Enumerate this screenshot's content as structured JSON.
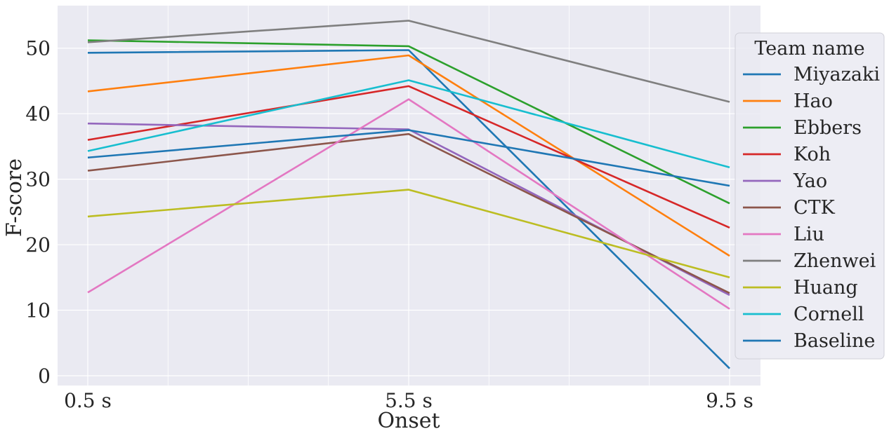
{
  "chart_data": {
    "type": "line",
    "categories": [
      "0.5 s",
      "5.5 s",
      "9.5 s"
    ],
    "xlabel": "Onset",
    "ylabel": "F-score",
    "ylim": [
      -1.5,
      56.5
    ],
    "yticks": [
      0,
      10,
      20,
      30,
      40,
      50
    ],
    "grid": true,
    "legend_title": "Team name",
    "legend_position": "right",
    "series": [
      {
        "name": "Miyazaki",
        "color": "#1f77b4",
        "values": [
          49.3,
          49.7,
          1.1
        ]
      },
      {
        "name": "Hao",
        "color": "#ff7f0e",
        "values": [
          43.4,
          48.9,
          18.3
        ]
      },
      {
        "name": "Ebbers",
        "color": "#2ca02c",
        "values": [
          51.2,
          50.3,
          26.3
        ]
      },
      {
        "name": "Koh",
        "color": "#d62728",
        "values": [
          36.0,
          44.2,
          22.6
        ]
      },
      {
        "name": "Yao",
        "color": "#9467bd",
        "values": [
          38.5,
          37.6,
          12.3
        ]
      },
      {
        "name": "CTK",
        "color": "#8c564b",
        "values": [
          31.3,
          36.9,
          12.6
        ]
      },
      {
        "name": "Liu",
        "color": "#e377c2",
        "values": [
          12.7,
          42.2,
          10.2
        ]
      },
      {
        "name": "Zhenwei",
        "color": "#7f7f7f",
        "values": [
          50.9,
          54.2,
          41.8
        ]
      },
      {
        "name": "Huang",
        "color": "#bcbd22",
        "values": [
          24.3,
          28.4,
          15.0
        ]
      },
      {
        "name": "Cornell",
        "color": "#17becf",
        "values": [
          34.3,
          45.1,
          31.8
        ]
      },
      {
        "name": "Baseline",
        "color": "#1f77b4",
        "values": [
          33.3,
          37.5,
          29.0
        ]
      }
    ]
  }
}
